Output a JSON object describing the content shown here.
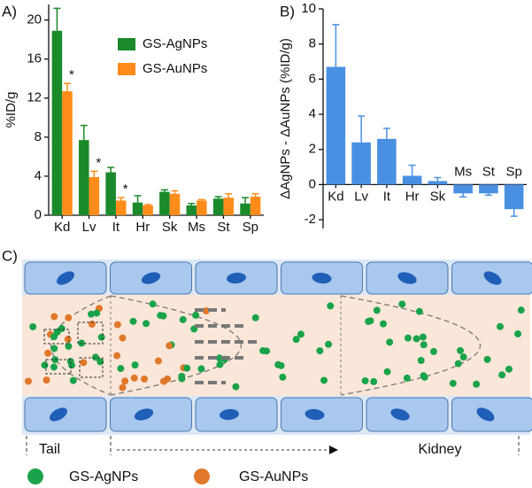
{
  "chart_data": [
    {
      "type": "bar",
      "title": "A)",
      "ylabel": "%ID/g",
      "categories": [
        "Kd",
        "Lv",
        "It",
        "Hr",
        "Sk",
        "Ms",
        "St",
        "Sp"
      ],
      "series": [
        {
          "name": "GS-AgNPs",
          "color": "#1a8a2a",
          "values": [
            18.9,
            7.7,
            4.4,
            1.3,
            2.4,
            1.0,
            1.7,
            1.2
          ],
          "errors": [
            2.3,
            1.5,
            0.5,
            0.7,
            0.2,
            0.2,
            0.2,
            0.6
          ]
        },
        {
          "name": "GS-AuNPs",
          "color": "#ff8c1a",
          "values": [
            12.7,
            3.9,
            1.5,
            1.0,
            2.2,
            1.5,
            1.8,
            1.9
          ],
          "errors": [
            0.8,
            0.6,
            0.3,
            0.1,
            0.3,
            0.1,
            0.4,
            0.3
          ]
        }
      ],
      "significance": [
        "*",
        "*",
        "*",
        null,
        null,
        null,
        null,
        null
      ],
      "ylim": [
        0,
        21.6
      ],
      "yticks": [
        0,
        4,
        8,
        12,
        16,
        20
      ],
      "legend": "upper right"
    },
    {
      "type": "bar",
      "title": "B)",
      "ylabel": "ΔAgNPs - ΔAuNPs (%ID/g)",
      "categories": [
        "Kd",
        "Lv",
        "It",
        "Hr",
        "Sk",
        "Ms",
        "St",
        "Sp"
      ],
      "series": [
        {
          "color": "#4a90e2",
          "values": [
            6.7,
            2.4,
            2.6,
            0.5,
            0.2,
            -0.5,
            -0.5,
            -1.4
          ],
          "errors": [
            2.4,
            1.5,
            0.6,
            0.6,
            0.2,
            0.2,
            0.1,
            0.4
          ]
        }
      ],
      "ylim": [
        -2.5,
        10
      ],
      "yticks": [
        -2,
        0,
        2,
        4,
        6,
        8,
        10
      ]
    }
  ],
  "diagram": {
    "label": "C)",
    "regions": {
      "tail": "Tail",
      "kidney": "Kidney"
    },
    "legend": [
      "GS-AgNPs",
      "GS-AuNPs"
    ]
  }
}
